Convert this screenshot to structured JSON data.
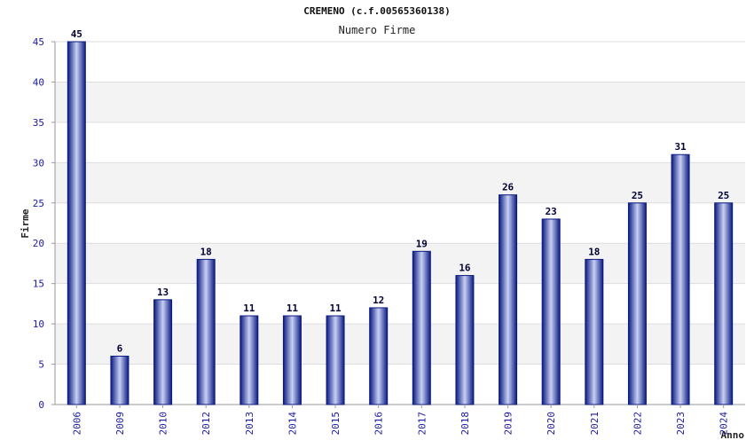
{
  "chart_data": {
    "type": "bar",
    "title": "CREMENO (c.f.00565360138)",
    "subtitle": "Numero Firme",
    "xlabel": "Anno",
    "ylabel": "Firme",
    "categories": [
      "2006",
      "2009",
      "2010",
      "2012",
      "2013",
      "2014",
      "2015",
      "2016",
      "2017",
      "2018",
      "2019",
      "2020",
      "2021",
      "2022",
      "2023",
      "2024"
    ],
    "values": [
      45,
      6,
      13,
      18,
      11,
      11,
      11,
      12,
      19,
      16,
      26,
      23,
      18,
      25,
      31,
      25
    ],
    "ylim": [
      0,
      45
    ],
    "yticks": [
      "0",
      "5",
      "10",
      "15",
      "20",
      "25",
      "30",
      "35",
      "40",
      "45"
    ],
    "grid": true,
    "legend": "none",
    "colors": {
      "bar_dark": "#0a1a80",
      "bar_light": "#c8d0f5",
      "band": "#f3f3f3",
      "grid": "#dddddd",
      "tick_text": "#1a1aa0"
    }
  }
}
